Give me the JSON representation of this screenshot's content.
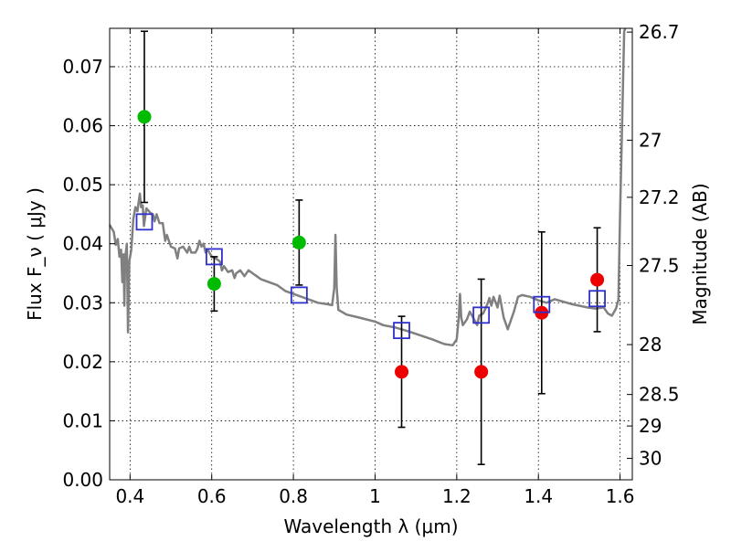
{
  "chart_data": {
    "type": "scatter",
    "xlabel": "Wavelength  λ (μm)",
    "ylabel": "Flux  F_ν  ( μJy )",
    "y2label": "Magnitude (AB)",
    "xlim": [
      0.35,
      1.63
    ],
    "ylim": [
      0.0,
      0.0765
    ],
    "grid": true,
    "x_ticks": [
      {
        "value": 0.4,
        "label": "0.4"
      },
      {
        "value": 0.6,
        "label": "0.6"
      },
      {
        "value": 0.8,
        "label": "0.8"
      },
      {
        "value": 1.0,
        "label": "1"
      },
      {
        "value": 1.2,
        "label": "1.2"
      },
      {
        "value": 1.4,
        "label": "1.4"
      },
      {
        "value": 1.6,
        "label": "1.6"
      }
    ],
    "y_ticks": [
      {
        "value": 0.0,
        "label": "0.00"
      },
      {
        "value": 0.01,
        "label": "0.01"
      },
      {
        "value": 0.02,
        "label": "0.02"
      },
      {
        "value": 0.03,
        "label": "0.03"
      },
      {
        "value": 0.04,
        "label": "0.04"
      },
      {
        "value": 0.05,
        "label": "0.05"
      },
      {
        "value": 0.06,
        "label": "0.06"
      },
      {
        "value": 0.07,
        "label": "0.07"
      }
    ],
    "y2_ticks": [
      {
        "mag": 26.7,
        "label": "26.7"
      },
      {
        "mag": 27.0,
        "label": "27"
      },
      {
        "mag": 27.2,
        "label": "27.2"
      },
      {
        "mag": 27.5,
        "label": "27.5"
      },
      {
        "mag": 28.0,
        "label": "28"
      },
      {
        "mag": 28.5,
        "label": "28.5"
      },
      {
        "mag": 29.0,
        "label": "29"
      },
      {
        "mag": 30.0,
        "label": "30"
      }
    ],
    "colors": {
      "detection": "#00bb00",
      "upper_limit": "#ee0000",
      "model": "#3030cc",
      "spectrum": "#808080"
    },
    "series": [
      {
        "kind": "points",
        "points": [
          {
            "x": 0.435,
            "y": 0.0615,
            "yerr_low": 0.0145,
            "yerr_high": 0.0145
          },
          {
            "x": 0.606,
            "y": 0.0332,
            "yerr_low": 0.0046,
            "yerr_high": 0.0046
          },
          {
            "x": 0.814,
            "y": 0.0402,
            "yerr_low": 0.0072,
            "yerr_high": 0.0072
          }
        ]
      },
      {
        "kind": "points",
        "points": [
          {
            "x": 1.065,
            "y": 0.0183,
            "yerr_low": 0.0094,
            "yerr_high": 0.0094
          },
          {
            "x": 1.26,
            "y": 0.0183,
            "yerr_low": 0.0157,
            "yerr_high": 0.0157
          },
          {
            "x": 1.408,
            "y": 0.0283,
            "yerr_low": 0.0137,
            "yerr_high": 0.0137
          },
          {
            "x": 1.544,
            "y": 0.0339,
            "yerr_low": 0.0088,
            "yerr_high": 0.0088
          }
        ]
      },
      {
        "kind": "squares",
        "points": [
          {
            "x": 0.435,
            "y": 0.0437
          },
          {
            "x": 0.606,
            "y": 0.0378
          },
          {
            "x": 0.814,
            "y": 0.0313
          },
          {
            "x": 1.065,
            "y": 0.0253
          },
          {
            "x": 1.26,
            "y": 0.0279
          },
          {
            "x": 1.408,
            "y": 0.0297
          },
          {
            "x": 1.544,
            "y": 0.0307
          }
        ]
      },
      {
        "kind": "line",
        "points": [
          [
            0.35,
            0.0432
          ],
          [
            0.36,
            0.042
          ],
          [
            0.365,
            0.0398
          ],
          [
            0.37,
            0.0408
          ],
          [
            0.374,
            0.0378
          ],
          [
            0.378,
            0.039
          ],
          [
            0.381,
            0.0335
          ],
          [
            0.384,
            0.0382
          ],
          [
            0.386,
            0.0295
          ],
          [
            0.388,
            0.0375
          ],
          [
            0.392,
            0.04
          ],
          [
            0.395,
            0.025
          ],
          [
            0.398,
            0.037
          ],
          [
            0.403,
            0.039
          ],
          [
            0.408,
            0.0442
          ],
          [
            0.413,
            0.0462
          ],
          [
            0.418,
            0.0455
          ],
          [
            0.421,
            0.047
          ],
          [
            0.424,
            0.0485
          ],
          [
            0.427,
            0.0462
          ],
          [
            0.431,
            0.0465
          ],
          [
            0.434,
            0.043
          ],
          [
            0.44,
            0.046
          ],
          [
            0.45,
            0.0452
          ],
          [
            0.456,
            0.045
          ],
          [
            0.46,
            0.0438
          ],
          [
            0.465,
            0.045
          ],
          [
            0.472,
            0.0435
          ],
          [
            0.48,
            0.0435
          ],
          [
            0.486,
            0.0405
          ],
          [
            0.49,
            0.0415
          ],
          [
            0.5,
            0.0395
          ],
          [
            0.51,
            0.0392
          ],
          [
            0.516,
            0.0375
          ],
          [
            0.52,
            0.0392
          ],
          [
            0.53,
            0.0395
          ],
          [
            0.54,
            0.0385
          ],
          [
            0.545,
            0.0395
          ],
          [
            0.55,
            0.0385
          ],
          [
            0.56,
            0.0385
          ],
          [
            0.565,
            0.0392
          ],
          [
            0.57,
            0.0405
          ],
          [
            0.575,
            0.0395
          ],
          [
            0.58,
            0.04
          ],
          [
            0.585,
            0.0385
          ],
          [
            0.59,
            0.039
          ],
          [
            0.6,
            0.0378
          ],
          [
            0.61,
            0.0375
          ],
          [
            0.62,
            0.037
          ],
          [
            0.625,
            0.0355
          ],
          [
            0.63,
            0.0362
          ],
          [
            0.64,
            0.0352
          ],
          [
            0.65,
            0.0355
          ],
          [
            0.656,
            0.0342
          ],
          [
            0.66,
            0.035
          ],
          [
            0.67,
            0.0355
          ],
          [
            0.68,
            0.0345
          ],
          [
            0.69,
            0.0355
          ],
          [
            0.7,
            0.035
          ],
          [
            0.71,
            0.0345
          ],
          [
            0.72,
            0.034
          ],
          [
            0.74,
            0.0335
          ],
          [
            0.76,
            0.033
          ],
          [
            0.78,
            0.032
          ],
          [
            0.8,
            0.0315
          ],
          [
            0.82,
            0.031
          ],
          [
            0.84,
            0.0305
          ],
          [
            0.86,
            0.03
          ],
          [
            0.88,
            0.0298
          ],
          [
            0.895,
            0.0296
          ],
          [
            0.9,
            0.0325
          ],
          [
            0.903,
            0.0415
          ],
          [
            0.906,
            0.0325
          ],
          [
            0.91,
            0.0288
          ],
          [
            0.93,
            0.028
          ],
          [
            0.96,
            0.0275
          ],
          [
            1.0,
            0.0268
          ],
          [
            1.02,
            0.0262
          ],
          [
            1.05,
            0.0258
          ],
          [
            1.08,
            0.0252
          ],
          [
            1.11,
            0.0245
          ],
          [
            1.14,
            0.0238
          ],
          [
            1.17,
            0.023
          ],
          [
            1.19,
            0.0228
          ],
          [
            1.2,
            0.0238
          ],
          [
            1.205,
            0.0275
          ],
          [
            1.208,
            0.0315
          ],
          [
            1.211,
            0.0275
          ],
          [
            1.215,
            0.0262
          ],
          [
            1.225,
            0.0272
          ],
          [
            1.232,
            0.0285
          ],
          [
            1.24,
            0.0275
          ],
          [
            1.25,
            0.0262
          ],
          [
            1.255,
            0.0278
          ],
          [
            1.265,
            0.0282
          ],
          [
            1.275,
            0.0298
          ],
          [
            1.28,
            0.0308
          ],
          [
            1.285,
            0.0295
          ],
          [
            1.29,
            0.031
          ],
          [
            1.3,
            0.0292
          ],
          [
            1.305,
            0.0312
          ],
          [
            1.315,
            0.0275
          ],
          [
            1.325,
            0.0255
          ],
          [
            1.34,
            0.0285
          ],
          [
            1.35,
            0.031
          ],
          [
            1.36,
            0.0313
          ],
          [
            1.38,
            0.031
          ],
          [
            1.4,
            0.0304
          ],
          [
            1.42,
            0.03
          ],
          [
            1.44,
            0.0306
          ],
          [
            1.46,
            0.0302
          ],
          [
            1.48,
            0.0298
          ],
          [
            1.5,
            0.0295
          ],
          [
            1.52,
            0.0292
          ],
          [
            1.54,
            0.029
          ],
          [
            1.56,
            0.0292
          ],
          [
            1.57,
            0.0282
          ],
          [
            1.58,
            0.0278
          ],
          [
            1.59,
            0.029
          ],
          [
            1.596,
            0.0305
          ],
          [
            1.6,
            0.045
          ],
          [
            1.605,
            0.06
          ],
          [
            1.61,
            0.076
          ],
          [
            1.613,
            0.0765
          ]
        ]
      }
    ]
  }
}
